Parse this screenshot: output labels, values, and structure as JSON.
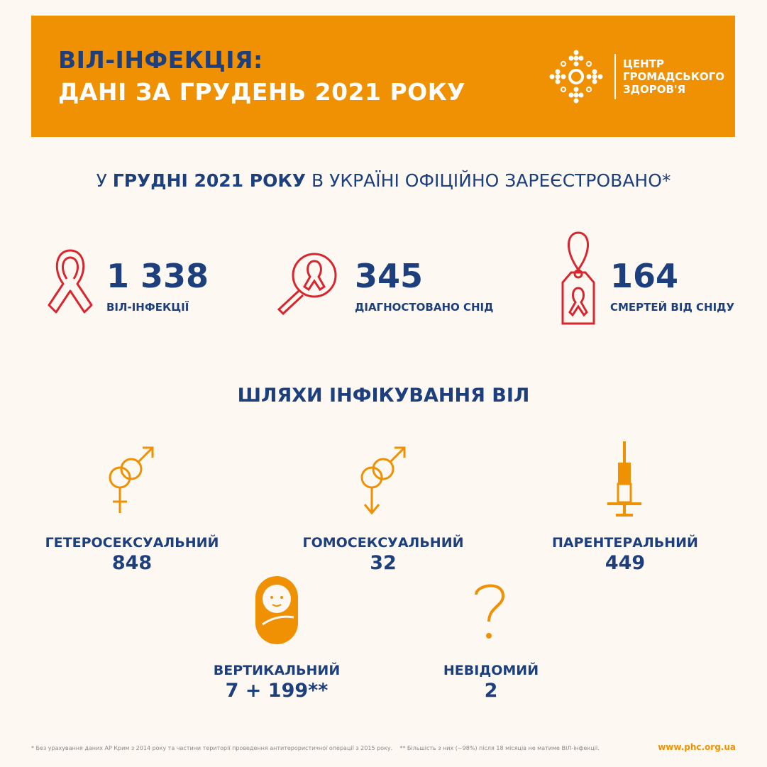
{
  "header": {
    "title_line1": "ВІЛ-ІНФЕКЦІЯ:",
    "title_line2": "ДАНІ ЗА ГРУДЕНЬ 2021 РОКУ",
    "logo_line1": "ЦЕНТР",
    "logo_line2": "ГРОМАДСЬКОГО",
    "logo_line3": "ЗДОРОВ'Я"
  },
  "subtitle": {
    "part1": "У ",
    "part2": "ГРУДНІ 2021 РОКУ",
    "part3": " В УКРАЇНІ ОФІЦІЙНО ЗАРЕЄСТРОВАНО*"
  },
  "stats": [
    {
      "value": "1 338",
      "label": "ВІЛ-ІНФЕКЦІЇ",
      "icon": "ribbon-icon"
    },
    {
      "value": "345",
      "label": "ДІАГНОСТОВАНО СНІД",
      "icon": "magnifier-ribbon-icon"
    },
    {
      "value": "164",
      "label": "СМЕРТЕЙ ВІД СНІДУ",
      "icon": "tag-ribbon-icon"
    }
  ],
  "routes_title": "ШЛЯХИ ІНФІКУВАННЯ ВІЛ",
  "routes": [
    {
      "label": "ГЕТЕРОСЕКСУАЛЬНИЙ",
      "value": "848",
      "icon": "male-female-icon"
    },
    {
      "label": "ГОМОСЕКСУАЛЬНИЙ",
      "value": "32",
      "icon": "male-male-icon"
    },
    {
      "label": "ПАРЕНТЕРАЛЬНИЙ",
      "value": "449",
      "icon": "syringe-icon"
    },
    {
      "label": "ВЕРТИКАЛЬНИЙ",
      "value": "7 + 199**",
      "icon": "baby-icon"
    },
    {
      "label": "НЕВІДОМИЙ",
      "value": "2",
      "icon": "question-icon"
    }
  ],
  "footer": {
    "note": "* Без урахування даних АР Крим з 2014 року та частини території проведення антитерористичної операції з 2015 року.    ** Більшість з них (~98%) після 18 місяців не матиме ВІЛ-інфекції.",
    "url": "www.phc.org.ua"
  },
  "colors": {
    "orange": "#f09104",
    "navy": "#1d3f7e",
    "red": "#d9262e",
    "background": "#fdf9f2"
  }
}
